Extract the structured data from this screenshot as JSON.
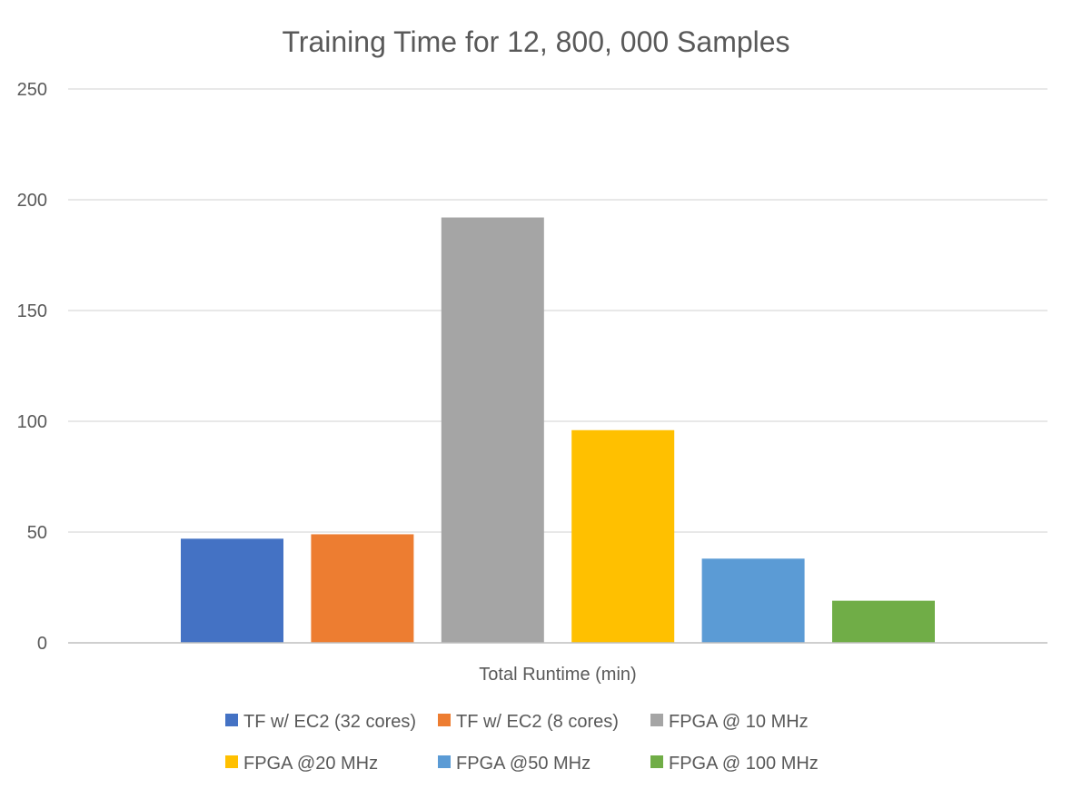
{
  "chart_data": {
    "type": "bar",
    "title": "Training Time for 12, 800, 000 Samples",
    "xlabel": "Total Runtime (min)",
    "ylabel": "",
    "ylim": [
      0,
      250
    ],
    "yticks": [
      0,
      50,
      100,
      150,
      200,
      250
    ],
    "grid": true,
    "legend_position": "bottom",
    "categories": [
      "Total Runtime (min)"
    ],
    "series": [
      {
        "name": "TF w/ EC2 (32 cores)",
        "values": [
          47
        ],
        "color": "#4472C4"
      },
      {
        "name": "TF w/ EC2 (8 cores)",
        "values": [
          49
        ],
        "color": "#ED7D31"
      },
      {
        "name": "FPGA @ 10 MHz",
        "values": [
          192
        ],
        "color": "#A5A5A5"
      },
      {
        "name": "FPGA @20 MHz",
        "values": [
          96
        ],
        "color": "#FFC000"
      },
      {
        "name": "FPGA @50 MHz",
        "values": [
          38
        ],
        "color": "#5B9BD5"
      },
      {
        "name": "FPGA @ 100 MHz",
        "values": [
          19
        ],
        "color": "#70AD47"
      }
    ]
  }
}
